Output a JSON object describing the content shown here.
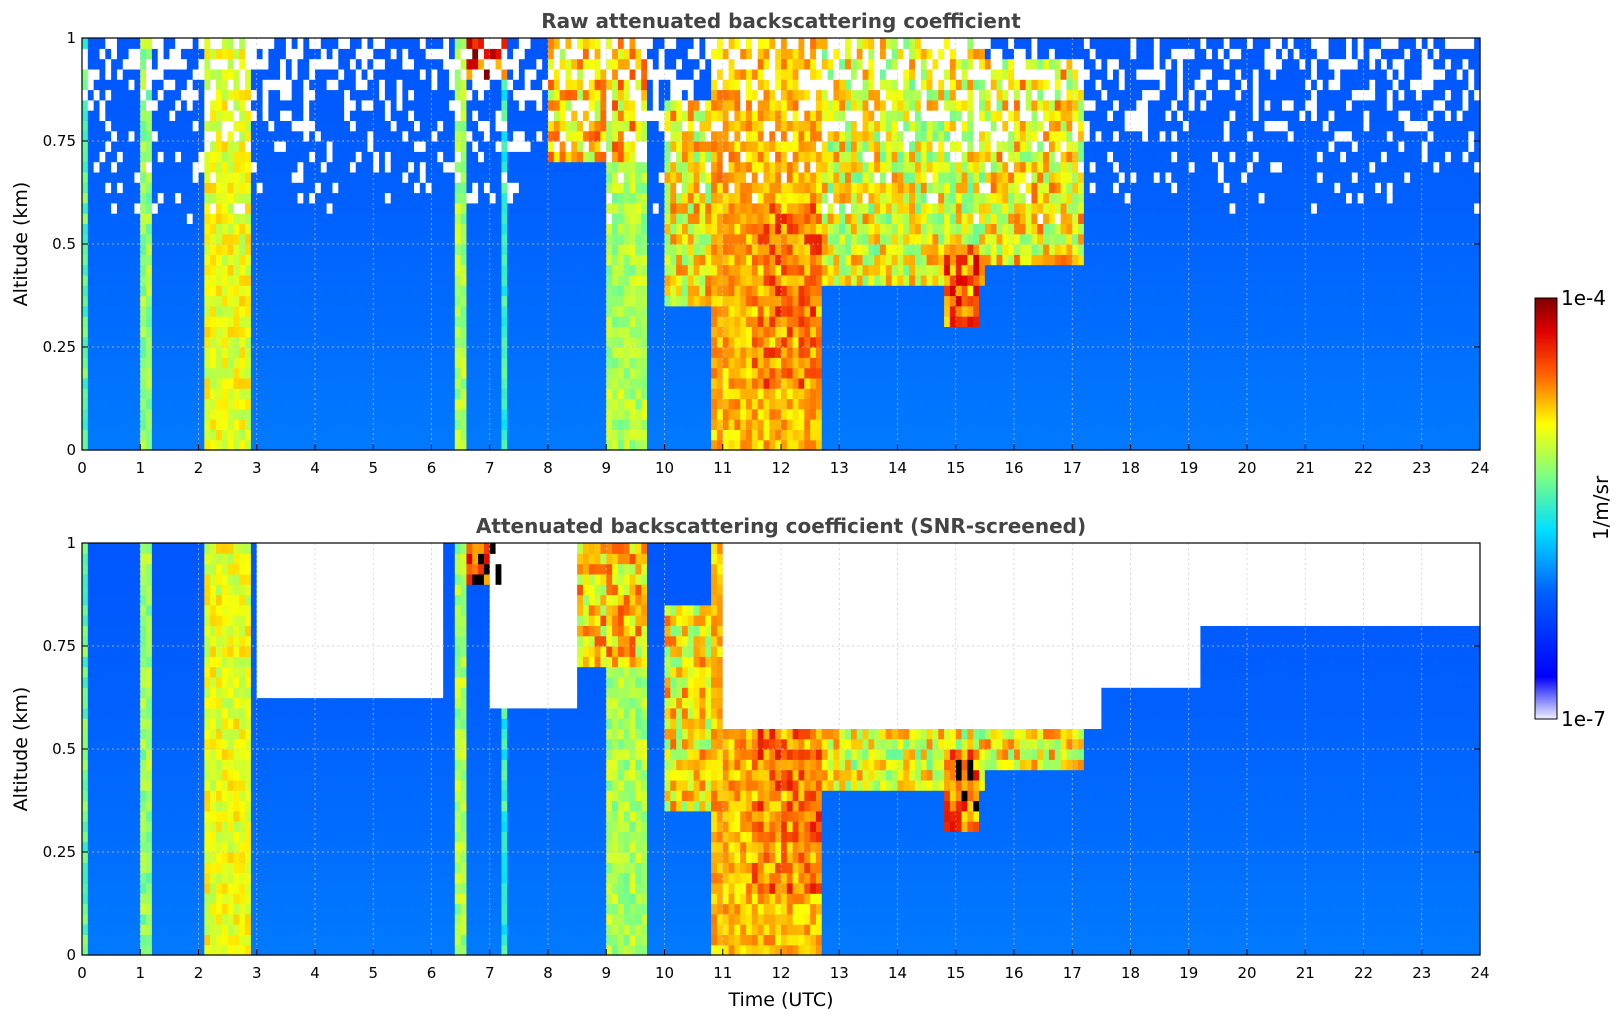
{
  "chart_data": [
    {
      "type": "heatmap",
      "title": "Raw attenuated backscattering coefficient",
      "xlabel": "",
      "ylabel": "Altitude (km)",
      "xlim": [
        0,
        24
      ],
      "ylim": [
        0,
        1
      ],
      "x_ticks": [
        "0",
        "1",
        "2",
        "3",
        "4",
        "5",
        "6",
        "7",
        "8",
        "9",
        "10",
        "11",
        "12",
        "13",
        "14",
        "15",
        "16",
        "17",
        "18",
        "19",
        "20",
        "21",
        "22",
        "23",
        "24"
      ],
      "y_ticks": [
        "0",
        "0.25",
        "0.5",
        "0.75",
        "1"
      ],
      "grid": true,
      "time_bands": [
        {
          "start": 0.0,
          "end": 0.15,
          "value": 0.55
        },
        {
          "start": 1.0,
          "end": 1.2,
          "value": 0.6
        },
        {
          "start": 2.1,
          "end": 2.9,
          "value": 0.68
        },
        {
          "start": 6.4,
          "end": 6.6,
          "value": 0.62
        },
        {
          "start": 7.2,
          "end": 7.3,
          "value": 0.5
        },
        {
          "start": 9.0,
          "end": 9.7,
          "value": 0.62
        },
        {
          "start": 10.8,
          "end": 12.7,
          "value": 0.75
        }
      ],
      "cloud_regions": [
        {
          "start": 6.6,
          "end": 7.3,
          "base": 0.9,
          "top": 1.0,
          "value": 1.0
        },
        {
          "start": 8.0,
          "end": 9.7,
          "base": 0.7,
          "top": 1.0,
          "value": 0.85
        },
        {
          "start": 10.0,
          "end": 11.5,
          "base": 0.35,
          "top": 0.85,
          "value": 0.82
        },
        {
          "start": 11.5,
          "end": 12.7,
          "base": 0.15,
          "top": 0.6,
          "value": 0.9
        },
        {
          "start": 12.7,
          "end": 15.5,
          "base": 0.4,
          "top": 1.0,
          "value": 0.8
        },
        {
          "start": 14.8,
          "end": 15.4,
          "base": 0.3,
          "top": 0.5,
          "value": 0.95
        },
        {
          "start": 15.5,
          "end": 17.2,
          "base": 0.45,
          "top": 0.95,
          "value": 0.82
        }
      ],
      "screened": false
    },
    {
      "type": "heatmap",
      "title": "Attenuated backscattering coefficient (SNR-screened)",
      "xlabel": "Time (UTC)",
      "ylabel": "Altitude (km)",
      "xlim": [
        0,
        24
      ],
      "ylim": [
        0,
        1
      ],
      "x_ticks": [
        "0",
        "1",
        "2",
        "3",
        "4",
        "5",
        "6",
        "7",
        "8",
        "9",
        "10",
        "11",
        "12",
        "13",
        "14",
        "15",
        "16",
        "17",
        "18",
        "19",
        "20",
        "21",
        "22",
        "23",
        "24"
      ],
      "y_ticks": [
        "0",
        "0.25",
        "0.5",
        "0.75",
        "1"
      ],
      "grid": true,
      "screened": true,
      "screened_regions": [
        {
          "start": 3.0,
          "end": 6.2,
          "base": 0.62,
          "top": 1.0
        },
        {
          "start": 7.0,
          "end": 8.5,
          "base": 0.6,
          "top": 1.0
        },
        {
          "start": 11.0,
          "end": 17.5,
          "base": 0.55,
          "top": 1.0
        },
        {
          "start": 17.5,
          "end": 19.2,
          "base": 0.65,
          "top": 1.0
        },
        {
          "start": 19.2,
          "end": 24.0,
          "base": 0.8,
          "top": 1.0
        }
      ]
    }
  ],
  "colorbar": {
    "max_label": "1e-4",
    "min_label": "1e-7",
    "unit_label": "1/m/sr",
    "colormap": "jet"
  }
}
